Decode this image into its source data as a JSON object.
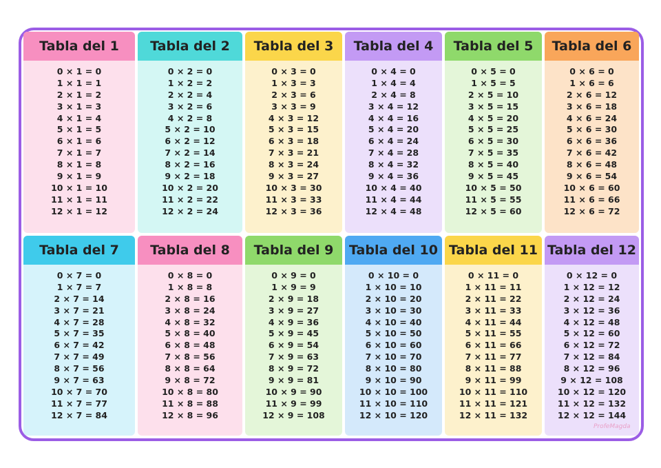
{
  "tables": [
    {
      "title": "Tabla del 1",
      "lines": [
        "0 × 1 = 0",
        "1 × 1 = 1",
        "2 × 1 = 2",
        "3 × 1 = 3",
        "4 × 1 = 4",
        "5 × 1 = 5",
        "6 × 1 = 6",
        "7 × 1 = 7",
        "8 × 1 = 8",
        "9 × 1 = 9",
        "10 × 1 = 10",
        "11 × 1 = 11",
        "12 × 1 = 12"
      ]
    },
    {
      "title": "Tabla del 2",
      "lines": [
        "0 × 2 = 0",
        "1 × 2 = 2",
        "2 × 2 = 4",
        "3 × 2 = 6",
        "4 × 2 = 8",
        "5 × 2 = 10",
        "6 × 2 = 12",
        "7 × 2 = 14",
        "8 × 2 = 16",
        "9 × 2 = 18",
        "10 × 2 = 20",
        "11 × 2 = 22",
        "12 × 2 = 24"
      ]
    },
    {
      "title": "Tabla del 3",
      "lines": [
        "0 × 3 = 0",
        "1 × 3 = 3",
        "2 × 3 = 6",
        "3 × 3 = 9",
        "4 × 3 = 12",
        "5 × 3 = 15",
        "6 × 3 = 18",
        "7 × 3 = 21",
        "8 × 3 = 24",
        "9 × 3 = 27",
        "10 × 3 = 30",
        "11 × 3 = 33",
        "12 × 3 = 36"
      ]
    },
    {
      "title": "Tabla del 4",
      "lines": [
        "0 × 4 = 0",
        "1 × 4 = 4",
        "2 × 4 = 8",
        "3 × 4 = 12",
        "4 × 4 = 16",
        "5 × 4 = 20",
        "6 × 4 = 24",
        "7 × 4 = 28",
        "8 × 4 = 32",
        "9 × 4 = 36",
        "10 × 4 = 40",
        "11 × 4 = 44",
        "12 × 4 = 48"
      ]
    },
    {
      "title": "Tabla del 5",
      "lines": [
        "0 × 5 = 0",
        "1 × 5 = 5",
        "2 × 5 = 10",
        "3 × 5 = 15",
        "4 × 5 = 20",
        "5 × 5 = 25",
        "6 × 5 = 30",
        "7 × 5 = 35",
        "8 × 5 = 40",
        "9 × 5 = 45",
        "10 × 5 = 50",
        "11 × 5 = 55",
        "12 × 5 = 60"
      ]
    },
    {
      "title": "Tabla del 6",
      "lines": [
        "0 × 6 = 0",
        "1 × 6 = 6",
        "2 × 6 = 12",
        "3 × 6 = 18",
        "4 × 6 = 24",
        "5 × 6 = 30",
        "6 × 6 = 36",
        "7 × 6 = 42",
        "8 × 6 = 48",
        "9 × 6 = 54",
        "10 × 6 = 60",
        "11 × 6 = 66",
        "12 × 6 = 72"
      ]
    },
    {
      "title": "Tabla del 7",
      "lines": [
        "0 × 7 = 0",
        "1 × 7 = 7",
        "2 × 7 = 14",
        "3 × 7 = 21",
        "4 × 7 = 28",
        "5 × 7 = 35",
        "6 × 7 = 42",
        "7 × 7 = 49",
        "8 × 7 = 56",
        "9 × 7 = 63",
        "10 × 7 = 70",
        "11 × 7 = 77",
        "12 × 7 = 84"
      ]
    },
    {
      "title": "Tabla del 8",
      "lines": [
        "0 × 8 = 0",
        "1 × 8 = 8",
        "2 × 8 = 16",
        "3 × 8 = 24",
        "4 × 8 = 32",
        "5 × 8 = 40",
        "6 × 8 = 48",
        "7 × 8 = 56",
        "8 × 8 = 64",
        "9 × 8 = 72",
        "10 × 8 = 80",
        "11 × 8 = 88",
        "12 × 8 = 96"
      ]
    },
    {
      "title": "Tabla del 9",
      "lines": [
        "0 × 9 = 0",
        "1 × 9 = 9",
        "2 × 9 = 18",
        "3 × 9 = 27",
        "4 × 9 = 36",
        "5 × 9 = 45",
        "6 × 9 = 54",
        "7 × 9 = 63",
        "8 × 9 = 72",
        "9 × 9 = 81",
        "10 × 9 = 90",
        "11 × 9 = 99",
        "12 × 9 = 108"
      ]
    },
    {
      "title": "Tabla del 10",
      "lines": [
        "0 × 10 = 0",
        "1 × 10 = 10",
        "2 × 10 = 20",
        "3 × 10 = 30",
        "4 × 10 = 40",
        "5 × 10 = 50",
        "6 × 10 = 60",
        "7 × 10 = 70",
        "8 × 10 = 80",
        "9 × 10 = 90",
        "10 × 10 = 100",
        "11 × 10 = 110",
        "12 × 10 = 120"
      ]
    },
    {
      "title": "Tabla del 11",
      "lines": [
        "0 × 11 = 0",
        "1 × 11 = 11",
        "2 × 11 = 22",
        "3 × 11 = 33",
        "4 × 11 = 44",
        "5 × 11 = 55",
        "6 × 11 = 66",
        "7 × 11 = 77",
        "8 × 11 = 88",
        "9 × 11 = 99",
        "10 × 11 = 110",
        "11 × 11 = 121",
        "12 × 11 = 132"
      ]
    },
    {
      "title": "Tabla del 12",
      "lines": [
        "0 × 12 = 0",
        "1 × 12 = 12",
        "2 × 12 = 24",
        "3 × 12 = 36",
        "4 × 12 = 48",
        "5 × 12 = 60",
        "6 × 12 = 72",
        "7 × 12 = 84",
        "8 × 12 = 96",
        "9 × 12 = 108",
        "10 × 12 = 120",
        "11 × 12 = 132",
        "12 × 12 = 144"
      ]
    }
  ],
  "watermark": "ProfeMagda"
}
